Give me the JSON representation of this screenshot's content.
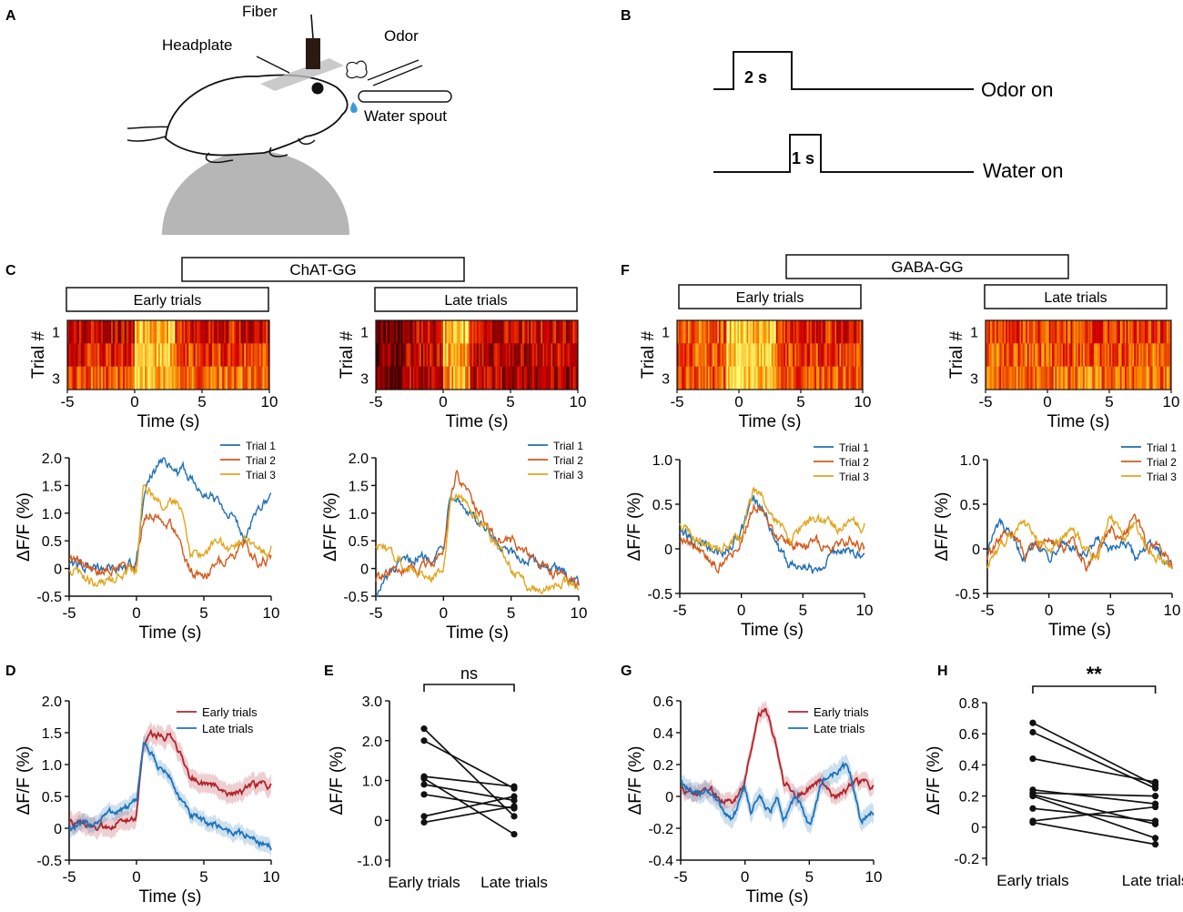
{
  "panel_letters": {
    "A": "A",
    "B": "B",
    "C": "C",
    "D": "D",
    "E": "E",
    "F": "F",
    "G": "G",
    "H": "H"
  },
  "schematic": {
    "fiber": "Fiber",
    "headplate": "Headplate",
    "odor": "Odor",
    "water_spout": "Water spout"
  },
  "timing": {
    "odor_label": "Odor on",
    "odor_duration": "2 s",
    "water_label": "Water on",
    "water_duration": "1 s"
  },
  "groups": {
    "chat": "ChAT-GG",
    "gaba": "GABA-GG"
  },
  "subgroups": {
    "early": "Early trials",
    "late": "Late trials"
  },
  "axes": {
    "time": "Time (s)",
    "trial": "Trial #",
    "dff": "ΔF/F (%)",
    "trial_1": "1",
    "trial_3": "3"
  },
  "traces": {
    "trial1": "Trial 1",
    "trial2": "Trial 2",
    "trial3": "Trial 3",
    "early": "Early trials",
    "late": "Late  trials"
  },
  "colors": {
    "trial1": "#1f6fb4",
    "trial2": "#d25a1c",
    "trial3": "#e0a61e",
    "early": "#b2242c",
    "late": "#1d73b8"
  },
  "chart_data": [
    {
      "id": "C-heat-early",
      "type": "heatmap",
      "title": "Early trials",
      "group": "ChAT-GG",
      "xlabel": "Time (s)",
      "ylabel": "Trial #",
      "xlim": [
        -5,
        10
      ],
      "xticks": [
        -5,
        0,
        5,
        10
      ],
      "rows": 3,
      "y_tick_labels": [
        "1",
        "3"
      ],
      "profile": "chat_early"
    },
    {
      "id": "C-heat-late",
      "type": "heatmap",
      "title": "Late trials",
      "group": "ChAT-GG",
      "xlabel": "Time (s)",
      "ylabel": "Trial #",
      "xlim": [
        -5,
        10
      ],
      "xticks": [
        -5,
        0,
        5,
        10
      ],
      "rows": 3,
      "y_tick_labels": [
        "1",
        "3"
      ],
      "profile": "chat_late"
    },
    {
      "id": "F-heat-early",
      "type": "heatmap",
      "title": "Early trials",
      "group": "GABA-GG",
      "xlabel": "Time (s)",
      "ylabel": "Trial #",
      "xlim": [
        -5,
        10
      ],
      "xticks": [
        -5,
        0,
        5,
        10
      ],
      "rows": 3,
      "y_tick_labels": [
        "1",
        "3"
      ],
      "profile": "gaba_early"
    },
    {
      "id": "F-heat-late",
      "type": "heatmap",
      "title": "Late trials",
      "group": "GABA-GG",
      "xlabel": "Time (s)",
      "ylabel": "Trial #",
      "xlim": [
        -5,
        10
      ],
      "xticks": [
        -5,
        0,
        5,
        10
      ],
      "rows": 3,
      "y_tick_labels": [
        "1",
        "3"
      ],
      "profile": "gaba_late"
    },
    {
      "id": "C-line-early",
      "type": "line",
      "xlabel": "Time (s)",
      "ylabel": "ΔF/F (%)",
      "xlim": [
        -5,
        10
      ],
      "ylim": [
        -0.5,
        2.0
      ],
      "xticks": [
        -5,
        0,
        5,
        10
      ],
      "yticks": [
        -0.5,
        0,
        0.5,
        1.0,
        1.5,
        2.0
      ],
      "series": [
        {
          "name": "Trial 1",
          "t": [
            -5,
            -4,
            -3,
            -2,
            -1,
            0,
            0.5,
            1,
            1.5,
            2,
            2.5,
            3,
            3.5,
            4,
            5,
            6,
            7,
            8,
            9,
            10
          ],
          "y": [
            0.1,
            0.05,
            0,
            0,
            0.05,
            0.1,
            1.2,
            1.6,
            1.8,
            1.95,
            1.9,
            1.7,
            1.8,
            1.6,
            1.4,
            1.25,
            1.0,
            0.55,
            1.05,
            1.3
          ]
        },
        {
          "name": "Trial 2",
          "t": [
            -5,
            -4,
            -3,
            -2,
            -1,
            0,
            0.5,
            1,
            1.5,
            2,
            2.5,
            3,
            3.5,
            4,
            5,
            6,
            7,
            8,
            9,
            10
          ],
          "y": [
            0.2,
            0.1,
            -0.05,
            0,
            0.05,
            0.1,
            0.9,
            1.0,
            0.95,
            0.85,
            0.8,
            0.6,
            0.2,
            -0.05,
            -0.2,
            0.1,
            0.2,
            0.45,
            0.1,
            0.2
          ]
        },
        {
          "name": "Trial 3",
          "t": [
            -5,
            -4,
            -3,
            -2,
            -1,
            0,
            0.5,
            1,
            1.5,
            2,
            2.5,
            3,
            3.5,
            4,
            5,
            6,
            7,
            8,
            9,
            10
          ],
          "y": [
            0.0,
            -0.1,
            -0.3,
            -0.2,
            -0.1,
            0.0,
            1.5,
            1.35,
            1.2,
            1.1,
            1.3,
            1.2,
            0.9,
            0.3,
            0.2,
            0.55,
            0.3,
            0.55,
            0.3,
            0.35
          ]
        }
      ]
    },
    {
      "id": "C-line-late",
      "type": "line",
      "xlabel": "Time (s)",
      "ylabel": "ΔF/F (%)",
      "xlim": [
        -5,
        10
      ],
      "ylim": [
        -0.5,
        2.0
      ],
      "xticks": [
        -5,
        0,
        5,
        10
      ],
      "yticks": [
        -0.5,
        0,
        0.5,
        1.0,
        1.5,
        2.0
      ],
      "series": [
        {
          "name": "Trial 1",
          "t": [
            -5,
            -4,
            -3,
            -2,
            -1,
            0,
            0.5,
            1,
            1.5,
            2,
            3,
            4,
            5,
            6,
            7,
            8,
            9,
            10
          ],
          "y": [
            -0.5,
            -0.1,
            0.1,
            0.2,
            0.2,
            0.4,
            1.4,
            1.3,
            1.1,
            1.0,
            0.7,
            0.4,
            0.25,
            0.15,
            0.1,
            0.0,
            -0.1,
            -0.25
          ]
        },
        {
          "name": "Trial 2",
          "t": [
            -5,
            -4,
            -3,
            -2,
            -1,
            0,
            0.5,
            1,
            1.5,
            2,
            3,
            4,
            5,
            6,
            7,
            8,
            9,
            10
          ],
          "y": [
            -0.2,
            -0.1,
            0.0,
            0.0,
            0.1,
            0.3,
            1.2,
            1.7,
            1.5,
            1.3,
            0.9,
            0.5,
            0.5,
            0.3,
            0.1,
            -0.1,
            -0.1,
            -0.3
          ]
        },
        {
          "name": "Trial 3",
          "t": [
            -5,
            -4,
            -3,
            -2,
            -1,
            0,
            0.5,
            1,
            1.5,
            2,
            3,
            4,
            5,
            6,
            7,
            8,
            9,
            10
          ],
          "y": [
            0.4,
            0.3,
            0.1,
            -0.1,
            -0.2,
            0.0,
            1.2,
            1.3,
            1.2,
            1.0,
            0.8,
            0.4,
            0.0,
            -0.3,
            -0.4,
            -0.3,
            -0.2,
            -0.35
          ]
        }
      ]
    },
    {
      "id": "F-line-early",
      "type": "line",
      "xlabel": "Time (s)",
      "ylabel": "ΔF/F (%)",
      "xlim": [
        -5,
        10
      ],
      "ylim": [
        -0.5,
        1.0
      ],
      "xticks": [
        -5,
        0,
        5,
        10
      ],
      "yticks": [
        -0.5,
        0,
        0.5,
        1.0
      ],
      "series": [
        {
          "name": "Trial 1",
          "t": [
            -5,
            -4,
            -3,
            -2,
            -1,
            0,
            0.5,
            1,
            1.5,
            2,
            2.5,
            3,
            4,
            5,
            6,
            7,
            8,
            9,
            10
          ],
          "y": [
            0.2,
            0.1,
            0.05,
            -0.05,
            0.0,
            0.2,
            0.4,
            0.55,
            0.45,
            0.35,
            0.2,
            0.0,
            -0.2,
            -0.15,
            -0.25,
            -0.1,
            0.0,
            -0.05,
            -0.1
          ]
        },
        {
          "name": "Trial 2",
          "t": [
            -5,
            -4,
            -3,
            -2,
            -1,
            0,
            0.5,
            1,
            1.5,
            2,
            2.5,
            3,
            4,
            5,
            6,
            7,
            8,
            9,
            10
          ],
          "y": [
            0.1,
            0.05,
            -0.05,
            -0.2,
            -0.1,
            0.1,
            0.3,
            0.5,
            0.45,
            0.4,
            0.2,
            0.1,
            0.05,
            0.0,
            0.1,
            0.0,
            0.05,
            0.1,
            0.0
          ]
        },
        {
          "name": "Trial 3",
          "t": [
            -5,
            -4,
            -3,
            -2,
            -1,
            0,
            0.5,
            1,
            1.5,
            2,
            2.5,
            3,
            4,
            5,
            6,
            7,
            8,
            9,
            10
          ],
          "y": [
            0.3,
            0.15,
            0.05,
            0.0,
            0.05,
            0.15,
            0.45,
            0.65,
            0.6,
            0.5,
            0.4,
            0.3,
            0.1,
            0.25,
            0.35,
            0.3,
            0.2,
            0.3,
            0.25
          ]
        }
      ]
    },
    {
      "id": "F-line-late",
      "type": "line",
      "xlabel": "Time (s)",
      "ylabel": "ΔF/F (%)",
      "xlim": [
        -5,
        10
      ],
      "ylim": [
        -0.5,
        1.0
      ],
      "xticks": [
        -5,
        0,
        5,
        10
      ],
      "yticks": [
        -0.5,
        0,
        0.5,
        1.0
      ],
      "series": [
        {
          "name": "Trial 1",
          "t": [
            -5,
            -4,
            -3,
            -2,
            -1,
            0,
            1,
            2,
            3,
            4,
            5,
            6,
            7,
            8,
            9,
            10
          ],
          "y": [
            0.0,
            0.3,
            0.1,
            -0.1,
            0.1,
            -0.1,
            0.1,
            0.0,
            -0.1,
            0.1,
            -0.05,
            0.1,
            -0.1,
            0.05,
            -0.05,
            -0.2
          ]
        },
        {
          "name": "Trial 2",
          "t": [
            -5,
            -4,
            -3,
            -2,
            -1,
            0,
            1,
            2,
            3,
            4,
            5,
            6,
            7,
            8,
            9,
            10
          ],
          "y": [
            -0.1,
            0.1,
            0.2,
            -0.05,
            0.05,
            0.1,
            0.0,
            0.1,
            -0.2,
            0.0,
            0.2,
            0.1,
            0.4,
            0.0,
            0.05,
            -0.2
          ]
        },
        {
          "name": "Trial 3",
          "t": [
            -5,
            -4,
            -3,
            -2,
            -1,
            0,
            1,
            2,
            3,
            4,
            5,
            6,
            7,
            8,
            9,
            10
          ],
          "y": [
            -0.2,
            0.0,
            0.2,
            0.3,
            0.1,
            0.0,
            0.1,
            0.2,
            0.0,
            -0.1,
            0.4,
            0.1,
            0.3,
            0.0,
            -0.1,
            -0.2
          ]
        }
      ]
    },
    {
      "id": "D-mean",
      "type": "area",
      "xlabel": "Time (s)",
      "ylabel": "ΔF/F (%)",
      "xlim": [
        -5,
        10
      ],
      "ylim": [
        -0.5,
        2.0
      ],
      "xticks": [
        -5,
        0,
        5,
        10
      ],
      "yticks": [
        -0.5,
        0,
        0.5,
        1.0,
        1.5,
        2.0
      ],
      "series": [
        {
          "name": "Early trials",
          "t": [
            -5,
            -4,
            -3,
            -2,
            -1,
            0,
            0.5,
            1,
            1.5,
            2,
            2.5,
            3,
            4,
            5,
            6,
            7,
            8,
            9,
            10
          ],
          "y": [
            0.1,
            0.05,
            0.0,
            0.05,
            0.1,
            0.2,
            1.3,
            1.5,
            1.45,
            1.4,
            1.5,
            1.3,
            0.8,
            0.7,
            0.65,
            0.55,
            0.6,
            0.7,
            0.65
          ],
          "sem": 0.15
        },
        {
          "name": "Late trials",
          "t": [
            -5,
            -4,
            -3,
            -2,
            -1,
            0,
            0.5,
            1,
            1.5,
            2,
            2.5,
            3,
            4,
            5,
            6,
            7,
            8,
            9,
            10
          ],
          "y": [
            0.0,
            0.05,
            0.1,
            0.25,
            0.3,
            0.4,
            1.35,
            1.2,
            1.0,
            0.9,
            0.8,
            0.55,
            0.2,
            0.1,
            0.05,
            -0.05,
            -0.1,
            -0.2,
            -0.3
          ],
          "sem": 0.12
        }
      ]
    },
    {
      "id": "E-paired",
      "type": "scatter",
      "ylabel": "ΔF/F (%)",
      "categories": [
        "Early trials",
        "Late trials"
      ],
      "ylim": [
        -1.0,
        3.0
      ],
      "yticks": [
        -1.0,
        0,
        1.0,
        2.0,
        3.0
      ],
      "ytick_labels": [
        "-1.0",
        "0",
        "1.0",
        "2.0",
        "3.0"
      ],
      "significance": "ns",
      "pairs": [
        [
          2.3,
          0.1
        ],
        [
          2.0,
          0.8
        ],
        [
          1.1,
          0.85
        ],
        [
          1.05,
          -0.35
        ],
        [
          0.9,
          0.5
        ],
        [
          0.65,
          0.3
        ],
        [
          0.1,
          0.6
        ],
        [
          -0.05,
          0.35
        ]
      ]
    },
    {
      "id": "G-mean",
      "type": "area",
      "xlabel": "Time (s)",
      "ylabel": "ΔF/F (%)",
      "xlim": [
        -5,
        10
      ],
      "ylim": [
        -0.4,
        0.6
      ],
      "xticks": [
        -5,
        0,
        5,
        10
      ],
      "yticks": [
        -0.4,
        -0.2,
        0,
        0.2,
        0.4,
        0.6
      ],
      "series": [
        {
          "name": "Early trials",
          "t": [
            -5,
            -4,
            -3,
            -2,
            -1,
            0,
            0.5,
            1,
            1.5,
            2,
            2.5,
            3,
            4,
            5,
            6,
            7,
            8,
            9,
            10
          ],
          "y": [
            0.05,
            0.0,
            0.05,
            0.0,
            -0.05,
            0.1,
            0.3,
            0.5,
            0.55,
            0.45,
            0.3,
            0.1,
            0.0,
            0.05,
            0.1,
            0.0,
            0.05,
            0.1,
            0.05
          ],
          "sem": 0.05
        },
        {
          "name": "Late trials",
          "t": [
            -5,
            -4,
            -3,
            -2,
            -1,
            0,
            0.5,
            1,
            1.5,
            2,
            2.5,
            3,
            4,
            5,
            6,
            7,
            8,
            9,
            10
          ],
          "y": [
            0.1,
            0.0,
            0.05,
            -0.05,
            -0.15,
            0.05,
            -0.1,
            0.0,
            -0.05,
            -0.1,
            0.0,
            -0.15,
            0.0,
            -0.2,
            0.1,
            0.15,
            0.2,
            -0.15,
            -0.1
          ],
          "sem": 0.06
        }
      ]
    },
    {
      "id": "H-paired",
      "type": "scatter",
      "ylabel": "ΔF/F (%)",
      "categories": [
        "Early trials",
        "Late trials"
      ],
      "ylim": [
        -0.2,
        0.8
      ],
      "yticks": [
        -0.2,
        0,
        0.2,
        0.4,
        0.6,
        0.8
      ],
      "ytick_labels": [
        "-0.2",
        "0",
        "0.2",
        "0.4",
        "0.6",
        "0.8"
      ],
      "significance": "**",
      "pairs": [
        [
          0.67,
          0.27
        ],
        [
          0.61,
          0.25
        ],
        [
          0.44,
          0.29
        ],
        [
          0.24,
          0.15
        ],
        [
          0.22,
          0.2
        ],
        [
          0.21,
          0.02
        ],
        [
          0.2,
          -0.07
        ],
        [
          0.12,
          0.04
        ],
        [
          0.04,
          0.13
        ],
        [
          0.03,
          -0.11
        ]
      ]
    }
  ]
}
